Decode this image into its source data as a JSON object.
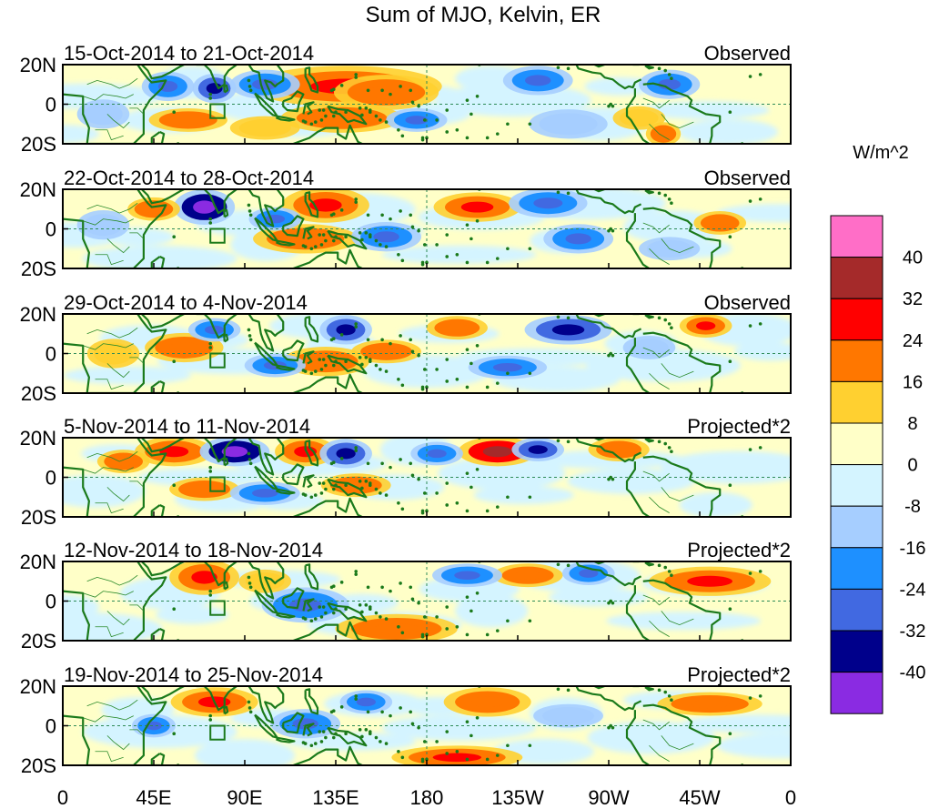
{
  "title": "Sum of MJO, Kelvin, ER",
  "colorbar": {
    "unit": "W/m^2",
    "levels": [
      "40",
      "32",
      "24",
      "16",
      "8",
      "0",
      "-8",
      "-16",
      "-24",
      "-32",
      "-40"
    ],
    "colors": [
      "#ff6ec7",
      "#a52a2a",
      "#ff0000",
      "#ff7700",
      "#ffd030",
      "#ffffc8",
      "#d4f4ff",
      "#a6ceff",
      "#1e90ff",
      "#4169e1",
      "#00008b",
      "#8a2be2"
    ]
  },
  "axes": {
    "lat_labels": [
      "20N",
      "0",
      "20S"
    ],
    "lon_labels": [
      "0",
      "45E",
      "90E",
      "135E",
      "180",
      "135W",
      "90W",
      "45W",
      "0"
    ]
  },
  "panels": [
    {
      "date_range": "15-Oct-2014 to 21-Oct-2014",
      "status": "Observed",
      "blobs": [
        {
          "lon": 140,
          "lat": 9,
          "w": 22,
          "h": 7,
          "v": 24
        },
        {
          "lon": 160,
          "lat": 6,
          "w": 12,
          "h": 6,
          "v": 16
        },
        {
          "lon": 138,
          "lat": -7,
          "w": 14,
          "h": 5,
          "v": 16
        },
        {
          "lon": 175,
          "lat": -8,
          "w": 7,
          "h": 4,
          "v": -16
        },
        {
          "lon": 52,
          "lat": 9,
          "w": 6,
          "h": 5,
          "v": -16
        },
        {
          "lon": 75,
          "lat": 8,
          "w": 5,
          "h": 5,
          "v": -24
        },
        {
          "lon": 62,
          "lat": -8,
          "w": 9,
          "h": 4,
          "v": 16
        },
        {
          "lon": 100,
          "lat": 10,
          "w": 8,
          "h": 5,
          "v": -16
        },
        {
          "lon": 235,
          "lat": 12,
          "w": 8,
          "h": 5,
          "v": -16
        },
        {
          "lon": 285,
          "lat": -7,
          "w": 6,
          "h": 4,
          "v": 8
        },
        {
          "lon": 297,
          "lat": -15,
          "w": 4,
          "h": 4,
          "v": 16
        },
        {
          "lon": 300,
          "lat": 10,
          "w": 7,
          "h": 5,
          "v": -16
        },
        {
          "lon": 20,
          "lat": -5,
          "w": 6,
          "h": 5,
          "v": -8
        },
        {
          "lon": 100,
          "lat": -12,
          "w": 8,
          "h": 4,
          "v": 8
        },
        {
          "lon": 250,
          "lat": -10,
          "w": 9,
          "h": 5,
          "v": -8
        }
      ]
    },
    {
      "date_range": "22-Oct-2014 to 28-Oct-2014",
      "status": "Observed",
      "blobs": [
        {
          "lon": 70,
          "lat": 11,
          "w": 7,
          "h": 6,
          "v": -32
        },
        {
          "lon": 130,
          "lat": 12,
          "w": 10,
          "h": 6,
          "v": 24
        },
        {
          "lon": 205,
          "lat": 11,
          "w": 10,
          "h": 5,
          "v": 24
        },
        {
          "lon": 120,
          "lat": -5,
          "w": 12,
          "h": 5,
          "v": 16
        },
        {
          "lon": 45,
          "lat": 10,
          "w": 6,
          "h": 4,
          "v": 16
        },
        {
          "lon": 160,
          "lat": -4,
          "w": 8,
          "h": 5,
          "v": -16
        },
        {
          "lon": 240,
          "lat": 13,
          "w": 9,
          "h": 5,
          "v": -16
        },
        {
          "lon": 255,
          "lat": -5,
          "w": 8,
          "h": 5,
          "v": -16
        },
        {
          "lon": 325,
          "lat": 3,
          "w": 6,
          "h": 4,
          "v": 16
        },
        {
          "lon": 105,
          "lat": 5,
          "w": 6,
          "h": 4,
          "v": -16
        },
        {
          "lon": 20,
          "lat": 2,
          "w": 6,
          "h": 5,
          "v": -8
        },
        {
          "lon": 300,
          "lat": -10,
          "w": 7,
          "h": 4,
          "v": -8
        }
      ]
    },
    {
      "date_range": "29-Oct-2014 to 4-Nov-2014",
      "status": "Observed",
      "blobs": [
        {
          "lon": 60,
          "lat": 3,
          "w": 9,
          "h": 5,
          "v": 16
        },
        {
          "lon": 130,
          "lat": -4,
          "w": 10,
          "h": 5,
          "v": 16
        },
        {
          "lon": 140,
          "lat": 12,
          "w": 6,
          "h": 5,
          "v": -24
        },
        {
          "lon": 160,
          "lat": 1,
          "w": 8,
          "h": 4,
          "v": 16
        },
        {
          "lon": 195,
          "lat": 13,
          "w": 7,
          "h": 4,
          "v": 16
        },
        {
          "lon": 250,
          "lat": 12,
          "w": 10,
          "h": 5,
          "v": -24
        },
        {
          "lon": 318,
          "lat": 14,
          "w": 6,
          "h": 4,
          "v": 24
        },
        {
          "lon": 75,
          "lat": 12,
          "w": 6,
          "h": 4,
          "v": -16
        },
        {
          "lon": 105,
          "lat": -6,
          "w": 7,
          "h": 4,
          "v": -16
        },
        {
          "lon": 220,
          "lat": -7,
          "w": 9,
          "h": 4,
          "v": -16
        },
        {
          "lon": 25,
          "lat": 0,
          "w": 6,
          "h": 5,
          "v": 8
        },
        {
          "lon": 290,
          "lat": 3,
          "w": 6,
          "h": 4,
          "v": -8
        }
      ]
    },
    {
      "date_range": "5-Nov-2014 to 11-Nov-2014",
      "status": "Projected*2",
      "blobs": [
        {
          "lon": 55,
          "lat": 13,
          "w": 9,
          "h": 5,
          "v": 24
        },
        {
          "lon": 85,
          "lat": 13,
          "w": 8,
          "h": 5,
          "v": -32
        },
        {
          "lon": 120,
          "lat": 13,
          "w": 7,
          "h": 5,
          "v": 24
        },
        {
          "lon": 140,
          "lat": 12,
          "w": 6,
          "h": 5,
          "v": -24
        },
        {
          "lon": 215,
          "lat": 13,
          "w": 9,
          "h": 5,
          "v": 32
        },
        {
          "lon": 235,
          "lat": 14,
          "w": 6,
          "h": 4,
          "v": -24
        },
        {
          "lon": 275,
          "lat": 14,
          "w": 7,
          "h": 4,
          "v": 16
        },
        {
          "lon": 145,
          "lat": -4,
          "w": 8,
          "h": 4,
          "v": 16
        },
        {
          "lon": 70,
          "lat": -6,
          "w": 8,
          "h": 4,
          "v": 16
        },
        {
          "lon": 30,
          "lat": 8,
          "w": 6,
          "h": 4,
          "v": 16
        },
        {
          "lon": 100,
          "lat": -8,
          "w": 8,
          "h": 4,
          "v": -16
        },
        {
          "lon": 185,
          "lat": 12,
          "w": 6,
          "h": 4,
          "v": -16
        }
      ]
    },
    {
      "date_range": "12-Nov-2014 to 18-Nov-2014",
      "status": "Projected*2",
      "blobs": [
        {
          "lon": 70,
          "lat": 12,
          "w": 8,
          "h": 6,
          "v": 24
        },
        {
          "lon": 320,
          "lat": 10,
          "w": 14,
          "h": 5,
          "v": 24
        },
        {
          "lon": 165,
          "lat": -14,
          "w": 14,
          "h": 5,
          "v": 16
        },
        {
          "lon": 120,
          "lat": -2,
          "w": 10,
          "h": 6,
          "v": -16
        },
        {
          "lon": 230,
          "lat": 13,
          "w": 8,
          "h": 4,
          "v": 16
        },
        {
          "lon": 260,
          "lat": 14,
          "w": 6,
          "h": 4,
          "v": -16
        },
        {
          "lon": 100,
          "lat": 10,
          "w": 6,
          "h": 4,
          "v": 8
        },
        {
          "lon": 200,
          "lat": 13,
          "w": 8,
          "h": 4,
          "v": -16
        }
      ]
    },
    {
      "date_range": "19-Nov-2014 to 25-Nov-2014",
      "status": "Projected*2",
      "blobs": [
        {
          "lon": 75,
          "lat": 12,
          "w": 10,
          "h": 5,
          "v": 24
        },
        {
          "lon": 210,
          "lat": 12,
          "w": 10,
          "h": 5,
          "v": 16
        },
        {
          "lon": 320,
          "lat": 11,
          "w": 12,
          "h": 4,
          "v": 16
        },
        {
          "lon": 195,
          "lat": -16,
          "w": 15,
          "h": 4,
          "v": 24
        },
        {
          "lon": 120,
          "lat": 1,
          "w": 8,
          "h": 5,
          "v": -16
        },
        {
          "lon": 45,
          "lat": 0,
          "w": 5,
          "h": 4,
          "v": -16
        },
        {
          "lon": 150,
          "lat": 12,
          "w": 6,
          "h": 4,
          "v": -16
        },
        {
          "lon": 250,
          "lat": 5,
          "w": 8,
          "h": 4,
          "v": -8
        }
      ]
    }
  ]
}
